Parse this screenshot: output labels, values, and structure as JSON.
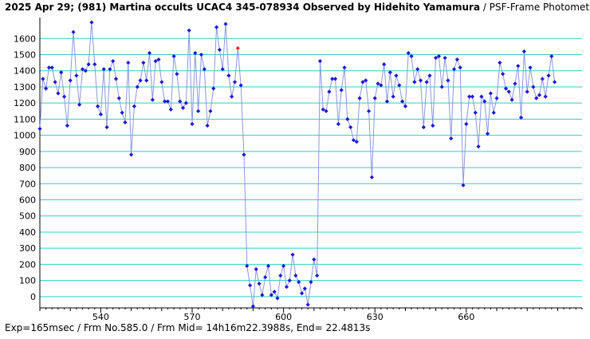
{
  "title": {
    "main": "2025 Apr 29; (981) Martina occults UCAC4 345-078934 Observed by Hidehito Yamamura",
    "sub": " / PSF-Frame Photometry /"
  },
  "footer": "Exp=165msec / Frm No.585.0 / Frm Mid= 14h16m22.3988s,  End= 22.4813s",
  "colors": {
    "grid": "#33cccc",
    "line": "#8899dd",
    "point": "#1a1ad6",
    "highlight": "#ff2020",
    "axis": "#000000"
  },
  "chart_data": {
    "type": "line",
    "xlim": [
      520,
      698
    ],
    "ylim": [
      -70,
      1730
    ],
    "x_ticks": [
      540,
      570,
      600,
      630,
      660
    ],
    "y_ticks": [
      0,
      100,
      200,
      300,
      400,
      500,
      600,
      700,
      800,
      900,
      1000,
      1100,
      1200,
      1300,
      1400,
      1500,
      1600
    ],
    "grid": "horizontal",
    "highlight_x": 585,
    "x_start": 520,
    "series": [
      {
        "values": [
          1040,
          1350,
          1290,
          1420,
          1420,
          1330,
          1260,
          1390,
          1240,
          1060,
          1340,
          1640,
          1370,
          1190,
          1410,
          1400,
          1440,
          1700,
          1440,
          1180,
          1130,
          1410,
          1050,
          1410,
          1460,
          1350,
          1230,
          1140,
          1080,
          1450,
          880,
          1180,
          1300,
          1340,
          1450,
          1340,
          1510,
          1220,
          1460,
          1470,
          1330,
          1210,
          1210,
          1160,
          1490,
          1380,
          1210,
          1170,
          1200,
          1650,
          1070,
          1510,
          1150,
          1500,
          1410,
          1060,
          1150,
          1290,
          1670,
          1530,
          1410,
          1690,
          1370,
          1240,
          1330,
          1540,
          1310,
          880,
          190,
          70,
          -60,
          170,
          80,
          10,
          120,
          190,
          10,
          30,
          -10,
          130,
          190,
          60,
          100,
          260,
          130,
          90,
          20,
          50,
          -50,
          90,
          230,
          130,
          1460,
          1160,
          1150,
          1270,
          1350,
          1350,
          1070,
          1280,
          1420,
          1100,
          1050,
          970,
          960,
          1230,
          1330,
          1340,
          1150,
          740,
          1230,
          1320,
          1310,
          1440,
          1210,
          1390,
          1240,
          1370,
          1310,
          1210,
          1180,
          1510,
          1490,
          1330,
          1410,
          1340,
          1050,
          1330,
          1370,
          1060,
          1480,
          1490,
          1300,
          1480,
          1340,
          980,
          1410,
          1470,
          1420,
          690,
          1070,
          1240,
          1240,
          1140,
          930,
          1240,
          1210,
          1010,
          1260,
          1140,
          1230,
          1450,
          1380,
          1290,
          1270,
          1220,
          1320,
          1430,
          1110,
          1520,
          1270,
          1420,
          1300,
          1230,
          1250,
          1350,
          1240,
          1370,
          1490,
          1330
        ]
      }
    ]
  }
}
